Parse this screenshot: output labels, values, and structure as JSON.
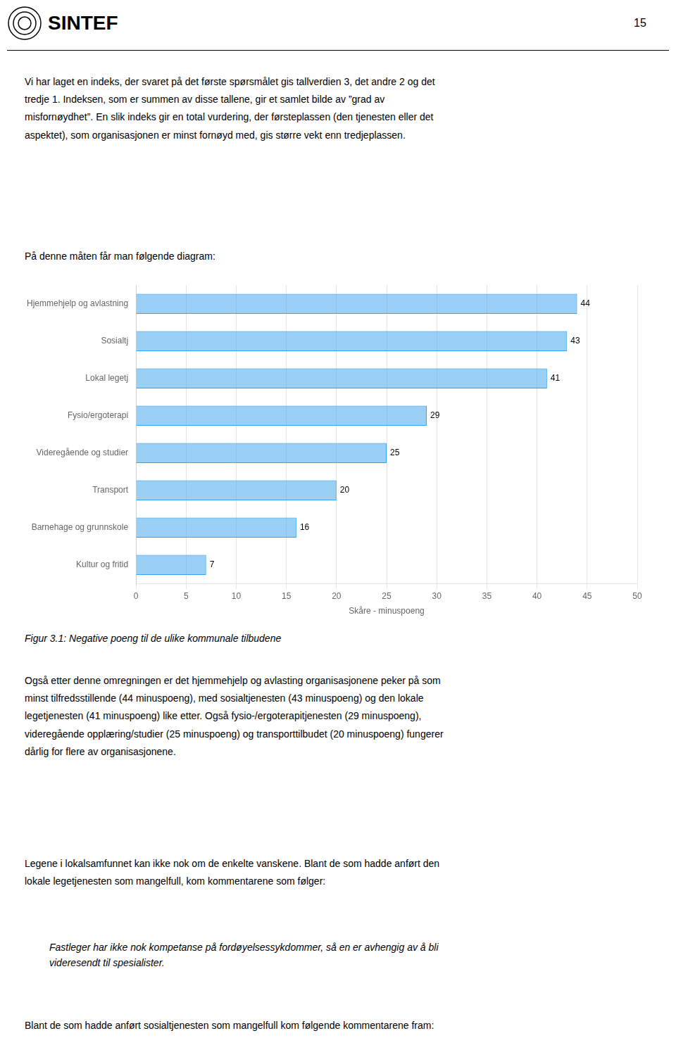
{
  "chart_data": {
    "type": "bar",
    "orientation": "horizontal",
    "categories": [
      "Hjemmehjelp og avlastning",
      "Sosialtj",
      "Lokal legetj",
      "Fysio/ergoterapi",
      "Videregående og studier",
      "Transport",
      "Barnehage og grunnskole",
      "Kultur og fritid"
    ],
    "values": [
      44,
      43,
      41,
      29,
      25,
      20,
      16,
      7
    ],
    "xlabel": "Skåre - minuspoeng",
    "xlim": [
      0,
      50
    ],
    "xticks": [
      0,
      5,
      10,
      15,
      20,
      25,
      30,
      35,
      40,
      45,
      50
    ],
    "grid": true,
    "data_labels": true,
    "caption": "Figur 3.1: Negative poeng til de ulike kommunale tilbudene"
  },
  "page": {
    "logo_text": "SINTEF",
    "page_number": "15",
    "body_text_1": "Vi har laget en indeks, der svaret på det første spørsmålet gis tallverdien 3, det andre 2 og det\ntredje 1. Indeksen, som er summen av disse tallene, gir et samlet bilde av ”grad av\nmisfornøydhet”. En slik indeks gir en total vurdering, der førsteplassen (den tjenesten eller det\naspektet), som organisasjonen er minst fornøyd med, gis større vekt enn tredjeplassen.",
    "header_text": "På denne måten får man følgende diagram:",
    "body_text_2": "Også etter denne omregningen er det hjemmehjelp og avlasting organisasjonene peker på som\nminst tilfredsstillende (44 minuspoeng), med sosialtjenesten (43 minuspoeng) og den lokale\nlegetjenesten (41 minuspoeng) like etter. Også fysio-/ergoterapitjenesten (29 minuspoeng),\nvideregående opplæring/studier (25 minuspoeng) og transporttilbudet (20 minuspoeng) fungerer\ndårlig for flere av organisasjonene.",
    "body_text_3": "Legene i lokalsamfunnet kan ikke nok om de enkelte vanskene. Blant de som hadde anført den\nlokale legetjenesten som mangelfull, kom kommentarene som følger:",
    "body_text_4": "Fastleger har ikke nok kompetanse på fordøyelsessykdommer, så en er avhengig av å bli\nvideresendt til spesialister.",
    "body_text_5": "Blant de som hadde anført sosialtjenesten som mangelfull kom følgende kommentarene fram:"
  }
}
